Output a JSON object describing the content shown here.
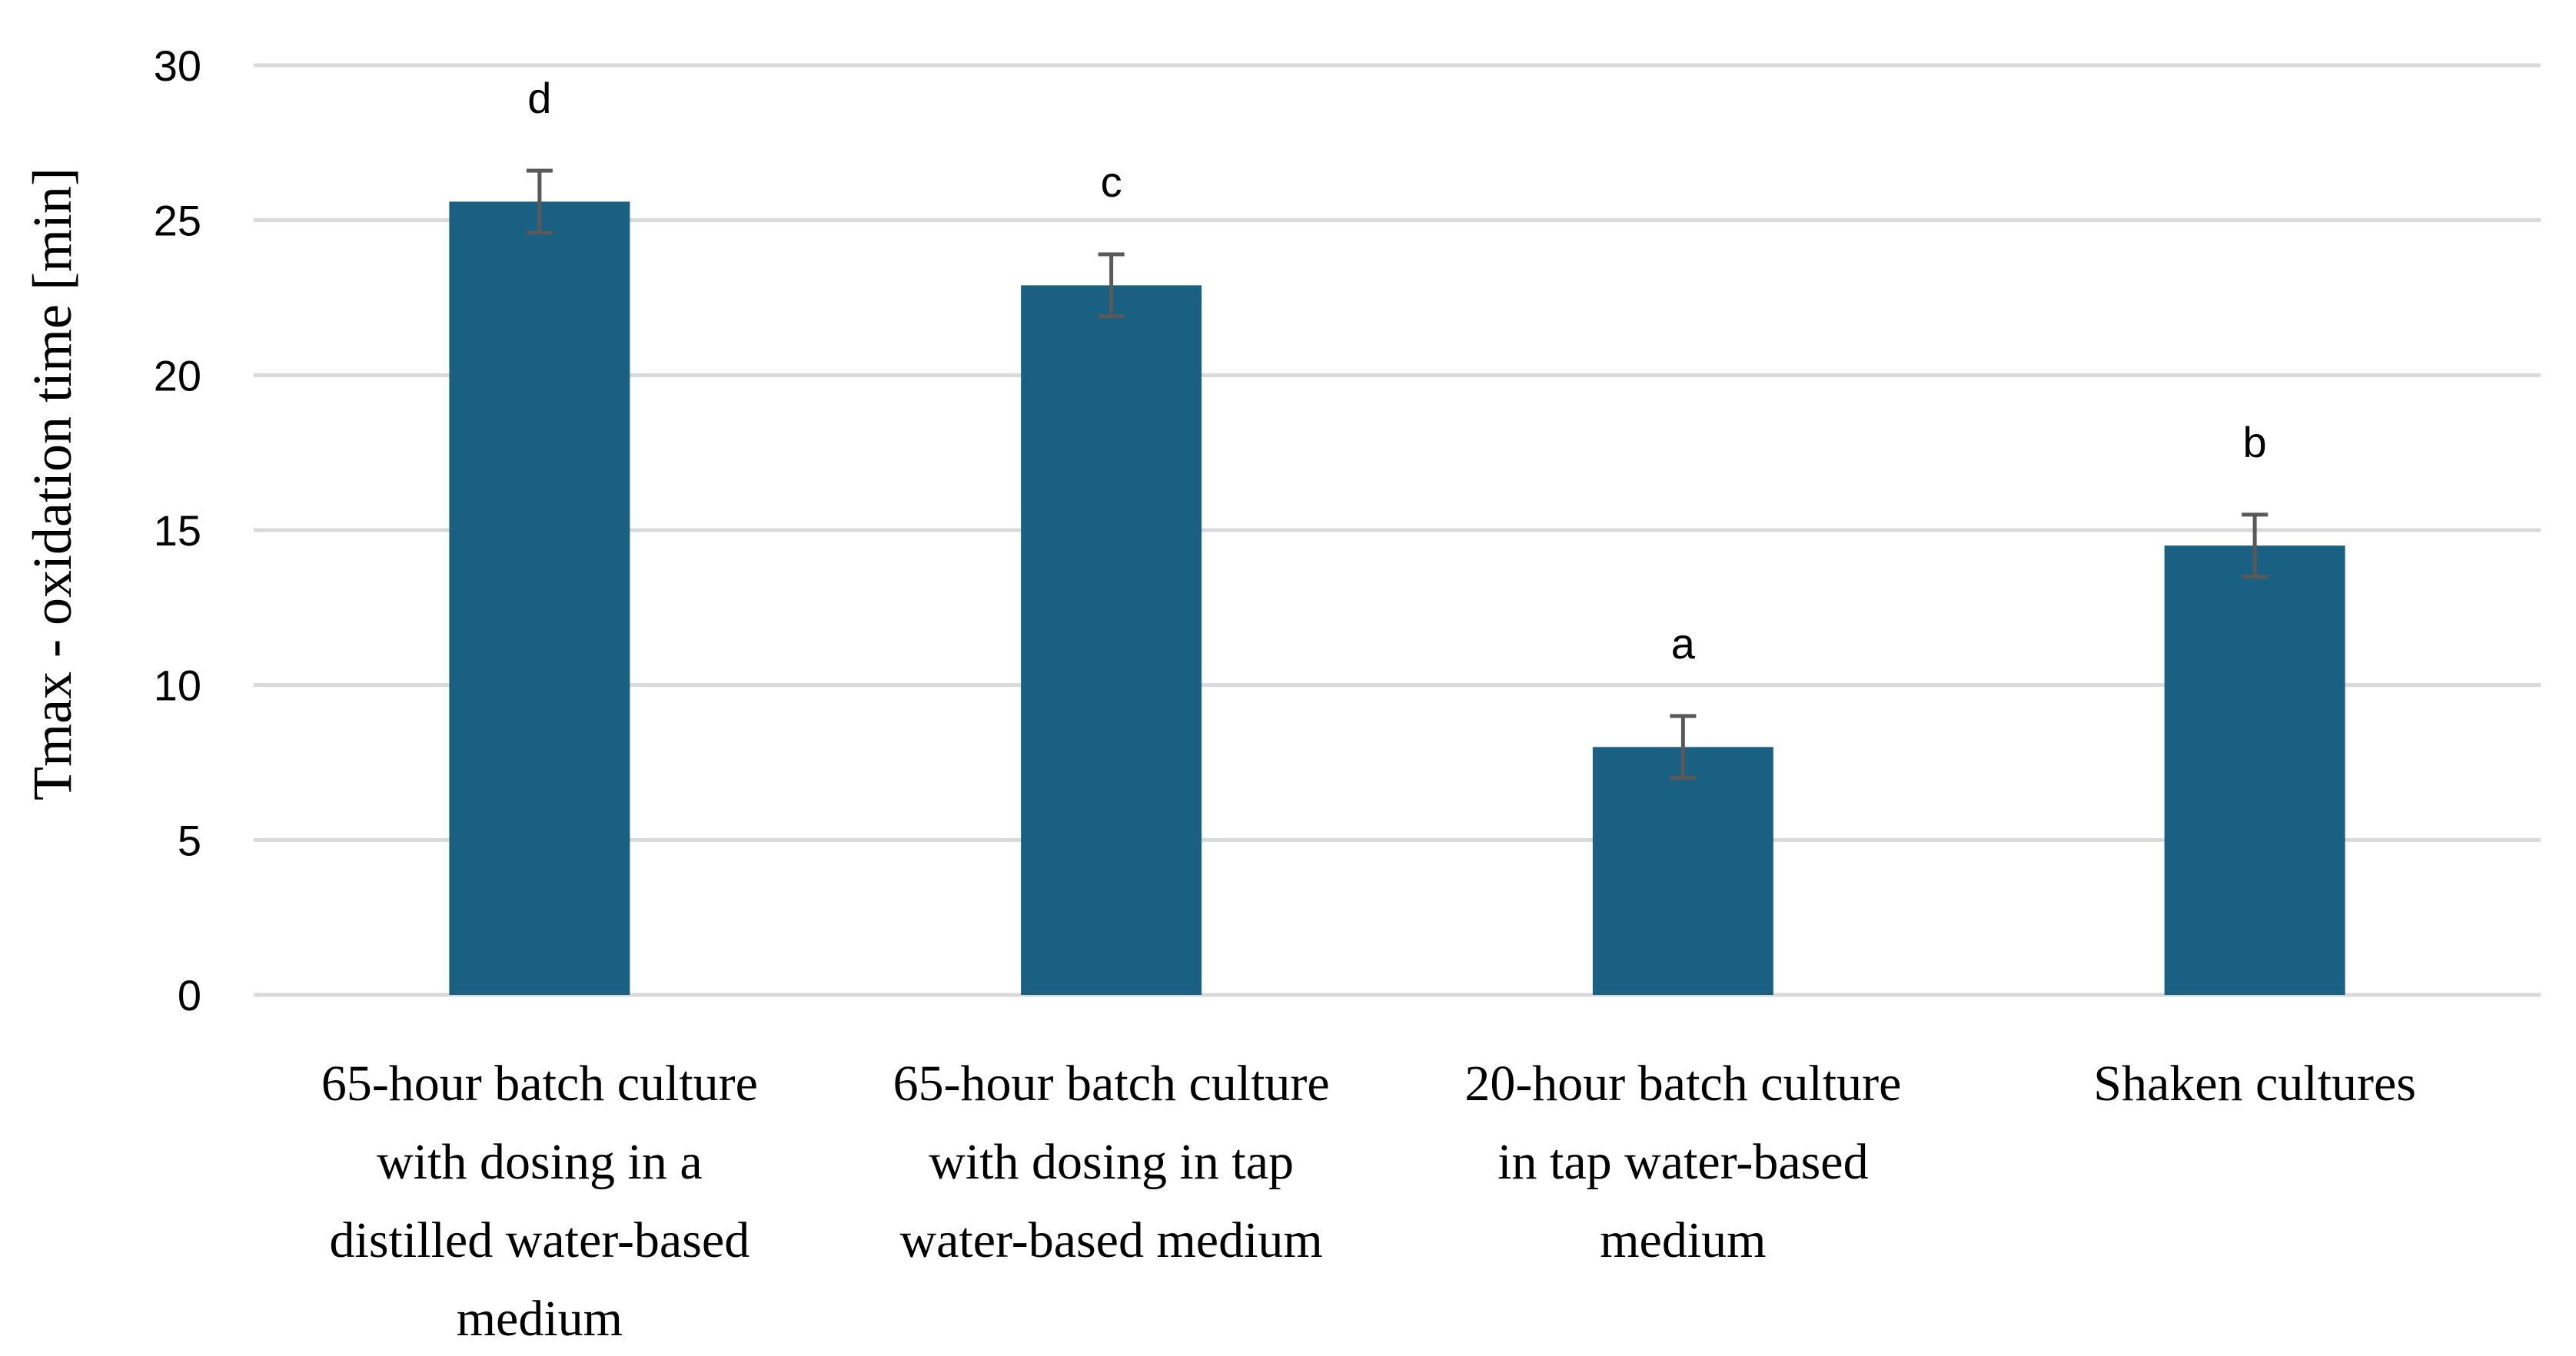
{
  "chart_data": {
    "type": "bar",
    "title": "",
    "xlabel": "",
    "ylabel": "Tmax - oxidation time [min]",
    "ylim": [
      0,
      30
    ],
    "yticks": [
      0,
      5,
      10,
      15,
      20,
      25,
      30
    ],
    "grid": true,
    "legend": "none",
    "categories": [
      [
        "65-hour batch culture",
        "with dosing in a",
        "distilled water-based",
        "medium"
      ],
      [
        "65-hour batch culture",
        "with dosing in tap",
        "water-based medium"
      ],
      [
        "20-hour batch culture",
        "in tap water-based",
        "medium"
      ],
      [
        "Shaken cultures"
      ]
    ],
    "series": [
      {
        "values": [
          25.6,
          22.9,
          8.0,
          14.5
        ],
        "errors": [
          1.0,
          1.0,
          1.0,
          1.0
        ],
        "color": "#1a6082"
      }
    ],
    "annotations": [
      "d",
      "c",
      "a",
      "b"
    ],
    "gridColor": "#d9d9d9",
    "errorColor": "#595959"
  }
}
